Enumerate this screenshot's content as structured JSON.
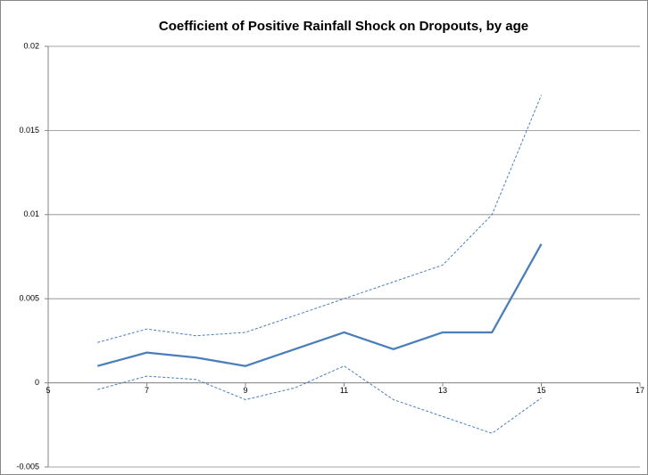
{
  "chart_data": {
    "type": "line",
    "title": "Coefficient of Positive Rainfall Shock on Dropouts, by age",
    "x": [
      6,
      7,
      8,
      9,
      10,
      11,
      12,
      13,
      14,
      15
    ],
    "series": [
      {
        "color": "#4a7ebb",
        "dashed": false,
        "values": [
          0.001,
          0.0018,
          0.0015,
          0.001,
          0.002,
          0.003,
          0.002,
          0.003,
          0.003,
          0.00825
        ]
      },
      {
        "color": "#4a7ebb",
        "dashed": true,
        "values": [
          0.0024,
          0.0032,
          0.0028,
          0.003,
          0.004,
          0.005,
          0.006,
          0.007,
          0.01,
          0.0171
        ]
      },
      {
        "color": "#4a7ebb",
        "dashed": true,
        "values": [
          -0.0004,
          0.0004,
          0.0002,
          -0.001,
          -0.0003,
          0.001,
          -0.001,
          -0.002,
          -0.003,
          -0.0009
        ]
      }
    ],
    "xlim": [
      5,
      17
    ],
    "xticks": [
      5,
      7,
      9,
      11,
      13,
      15,
      17
    ],
    "ylim": [
      -0.005,
      0.02
    ],
    "yticks": [
      -0.005,
      0,
      0.005,
      0.01,
      0.015,
      0.02
    ],
    "grid": true
  }
}
